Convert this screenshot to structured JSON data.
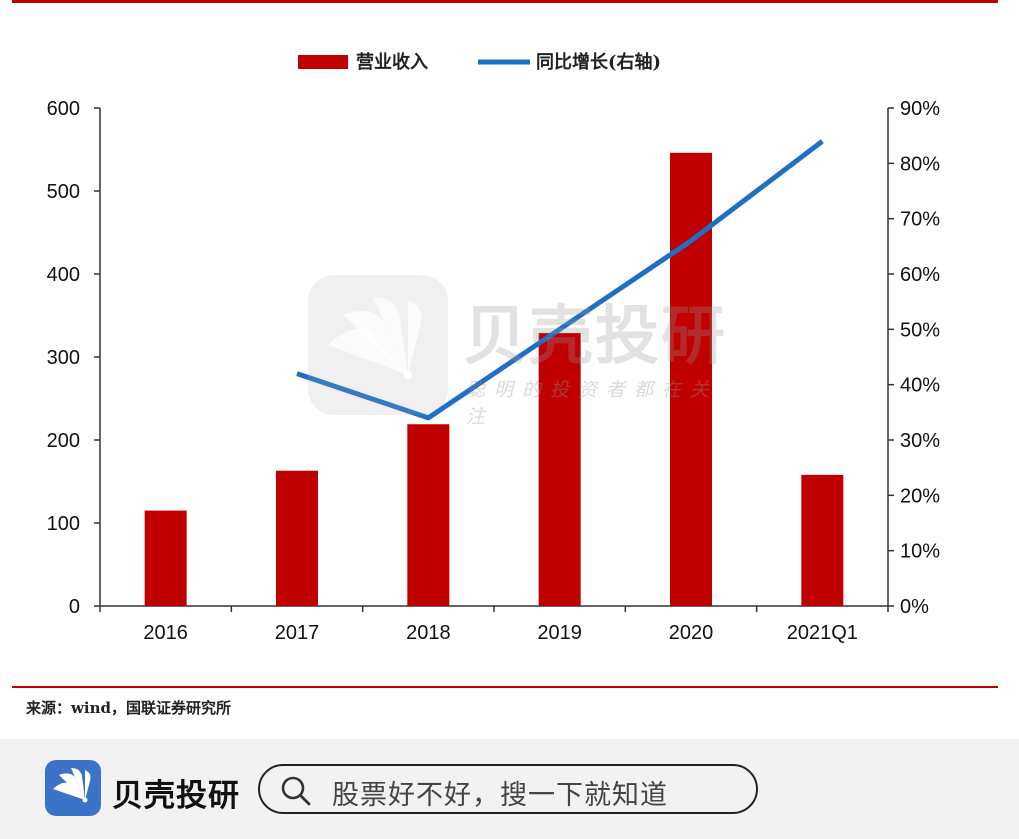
{
  "chart_data": {
    "type": "bar+line",
    "categories": [
      "2016",
      "2017",
      "2018",
      "2019",
      "2020",
      "2021Q1"
    ],
    "series": [
      {
        "name": "营业收入",
        "type": "bar",
        "axis": "left",
        "color": "#c00000",
        "values": [
          115,
          163,
          219,
          329,
          546,
          158
        ]
      },
      {
        "name": "同比增长(右轴)",
        "type": "line",
        "axis": "right",
        "color": "#1f6fc5",
        "values": [
          null,
          42,
          34,
          50,
          66,
          84
        ]
      }
    ],
    "left_axis": {
      "min": 0,
      "max": 600,
      "ticks": [
        "0",
        "100",
        "200",
        "300",
        "400",
        "500",
        "600"
      ]
    },
    "right_axis": {
      "min": 0,
      "max": 90,
      "ticks": [
        "0%",
        "10%",
        "20%",
        "30%",
        "40%",
        "50%",
        "60%",
        "70%",
        "80%",
        "90%"
      ]
    },
    "legend": {
      "placement": "top-center",
      "bar_label": "营业收入",
      "line_label": "同比增长(右轴)"
    },
    "grid": false
  },
  "source_text": "来源：wind，国联证券研究所",
  "watermark": {
    "title": "贝壳投研",
    "subtitle": "聪明的投资者都在关注"
  },
  "footer": {
    "brand": "贝壳投研",
    "search_placeholder": "股票好不好，搜一下就知道",
    "brand_color": "#3a73c8"
  }
}
